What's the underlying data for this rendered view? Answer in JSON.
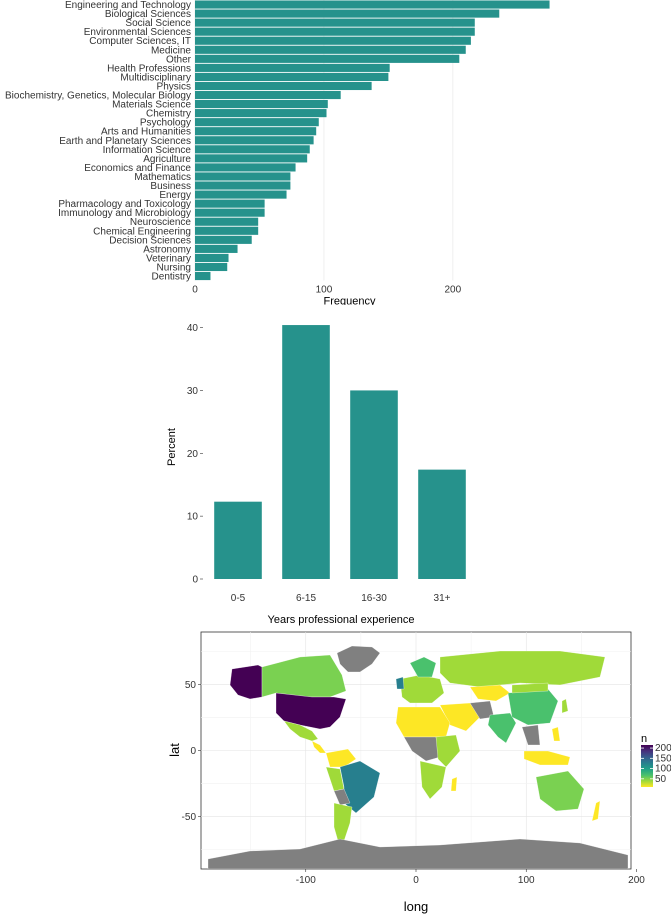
{
  "chart_data": [
    {
      "type": "bar",
      "orientation": "horizontal",
      "xlabel": "Frequency",
      "ylabel": "",
      "xlim": [
        0,
        280
      ],
      "xticks": [
        "0",
        "100",
        "200"
      ],
      "categories": [
        "Engineering and Technology",
        "Biological Sciences",
        "Social Science",
        "Environmental Sciences",
        "Computer Sciences, IT",
        "Medicine",
        "Other",
        "Health Professions",
        "Multidisciplinary",
        "Physics",
        "Biochemistry, Genetics, Molecular Biology",
        "Materials Science",
        "Chemistry",
        "Psychology",
        "Arts and Humanities",
        "Earth and Planetary Sciences",
        "Information Science",
        "Agriculture",
        "Economics and Finance",
        "Mathematics",
        "Business",
        "Energy",
        "Pharmacology and Toxicology",
        "Immunology and Microbiology",
        "Neuroscience",
        "Chemical Engineering",
        "Decision Sciences",
        "Astronomy",
        "Veterinary",
        "Nursing",
        "Dentistry"
      ],
      "values": [
        275,
        236,
        217,
        217,
        214,
        210,
        205,
        151,
        150,
        137,
        113,
        103,
        102,
        96,
        94,
        92,
        89,
        87,
        78,
        74,
        74,
        71,
        54,
        54,
        49,
        49,
        44,
        33,
        26,
        25,
        12
      ],
      "color": "#26928c",
      "grid": true
    },
    {
      "type": "bar",
      "xlabel": "Years professional experience",
      "ylabel": "Percent",
      "ylim": [
        0,
        42
      ],
      "yticks": [
        "0",
        "10",
        "20",
        "30",
        "40"
      ],
      "categories": [
        "0-5",
        "6-15",
        "16-30",
        "31+"
      ],
      "values": [
        12.3,
        40.4,
        30.0,
        17.4
      ],
      "color": "#26928c",
      "grid": false
    },
    {
      "type": "choropleth_map",
      "xlabel": "long",
      "ylabel": "lat",
      "xlim": [
        -195,
        195
      ],
      "ylim": [
        -90,
        90
      ],
      "xticks": [
        "-100",
        "0",
        "100",
        "200"
      ],
      "yticks": [
        "-50",
        "0",
        "50"
      ],
      "legend": {
        "title": "n",
        "placement": "right",
        "ticks": [
          "200",
          "150",
          "100",
          "50"
        ],
        "range": [
          10,
          215
        ],
        "colors": [
          "#fde725",
          "#a0da39",
          "#4ac16d",
          "#1fa187",
          "#277f8e",
          "#365c8d",
          "#46327e",
          "#440154"
        ]
      },
      "no_data_color": "#808080",
      "grid": true
    }
  ]
}
